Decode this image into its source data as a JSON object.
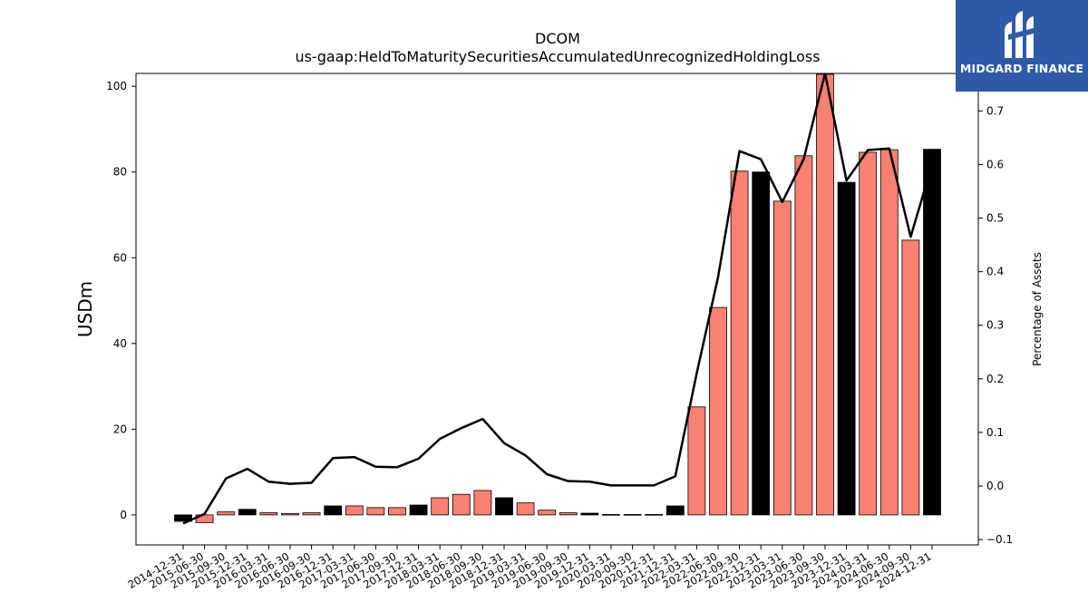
{
  "chart_data": {
    "type": "bar",
    "title": "DCOM",
    "subtitle": "us-gaap:HeldToMaturitySecuritiesAccumulatedUnrecognizedHoldingLoss",
    "ylabel": "USDm",
    "y2label": "Percentage of Assets",
    "ylim": [
      -7,
      103
    ],
    "y2lim": [
      -0.11,
      0.77
    ],
    "yticks": [
      0,
      20,
      40,
      60,
      80,
      100
    ],
    "y2ticks": [
      -0.1,
      0.0,
      0.1,
      0.2,
      0.3,
      0.4,
      0.5,
      0.6,
      0.7
    ],
    "categories": [
      "2014-12-31",
      "2015-06-30",
      "2015-09-30",
      "2015-12-31",
      "2016-03-31",
      "2016-06-30",
      "2016-09-30",
      "2016-12-31",
      "2017-03-31",
      "2017-06-30",
      "2017-09-30",
      "2017-12-31",
      "2018-03-31",
      "2018-06-30",
      "2018-09-30",
      "2018-12-31",
      "2019-03-31",
      "2019-06-30",
      "2019-09-30",
      "2019-12-31",
      "2020-03-31",
      "2020-09-30",
      "2020-12-31",
      "2021-12-31",
      "2022-03-31",
      "2022-06-30",
      "2022-09-30",
      "2022-12-31",
      "2023-03-31",
      "2023-06-30",
      "2023-09-30",
      "2023-12-31",
      "2024-03-31",
      "2024-06-30",
      "2024-09-30",
      "2024-12-31"
    ],
    "series": [
      {
        "values": [
          -1.5,
          -1.8,
          0.7,
          1.3,
          0.5,
          0.3,
          0.5,
          2.1,
          2.1,
          1.7,
          1.7,
          2.3,
          4.0,
          4.8,
          5.7,
          4.0,
          2.8,
          1.1,
          0.5,
          0.4,
          0.1,
          0.1,
          0.1,
          2.1,
          25.2,
          48.4,
          80.2,
          80.0,
          73.2,
          83.8,
          102.8,
          77.6,
          84.6,
          85.2,
          64.1,
          85.3
        ],
        "quarter_end_highlight": [
          true,
          false,
          false,
          true,
          false,
          false,
          false,
          true,
          false,
          false,
          false,
          true,
          false,
          false,
          false,
          true,
          false,
          false,
          false,
          true,
          false,
          false,
          true,
          true,
          false,
          false,
          false,
          true,
          false,
          false,
          false,
          true,
          false,
          false,
          false,
          true
        ]
      },
      {
        "values": [
          -0.07,
          -0.052,
          0.014,
          0.032,
          0.008,
          0.004,
          0.006,
          0.052,
          0.054,
          0.036,
          0.035,
          0.051,
          0.088,
          0.108,
          0.125,
          0.08,
          0.057,
          0.022,
          0.009,
          0.008,
          0.001,
          0.001,
          0.001,
          0.018,
          0.21,
          0.39,
          0.625,
          0.61,
          0.53,
          0.61,
          0.77,
          0.57,
          0.627,
          0.63,
          0.465,
          0.6
        ]
      }
    ],
    "colors": {
      "bar_year_end": "#000000",
      "bar_other": "#fa8072",
      "line": "#000000"
    },
    "grid": false
  },
  "logo": {
    "text": "MIDGARD FINANCE",
    "background": "#2f5aa8"
  }
}
